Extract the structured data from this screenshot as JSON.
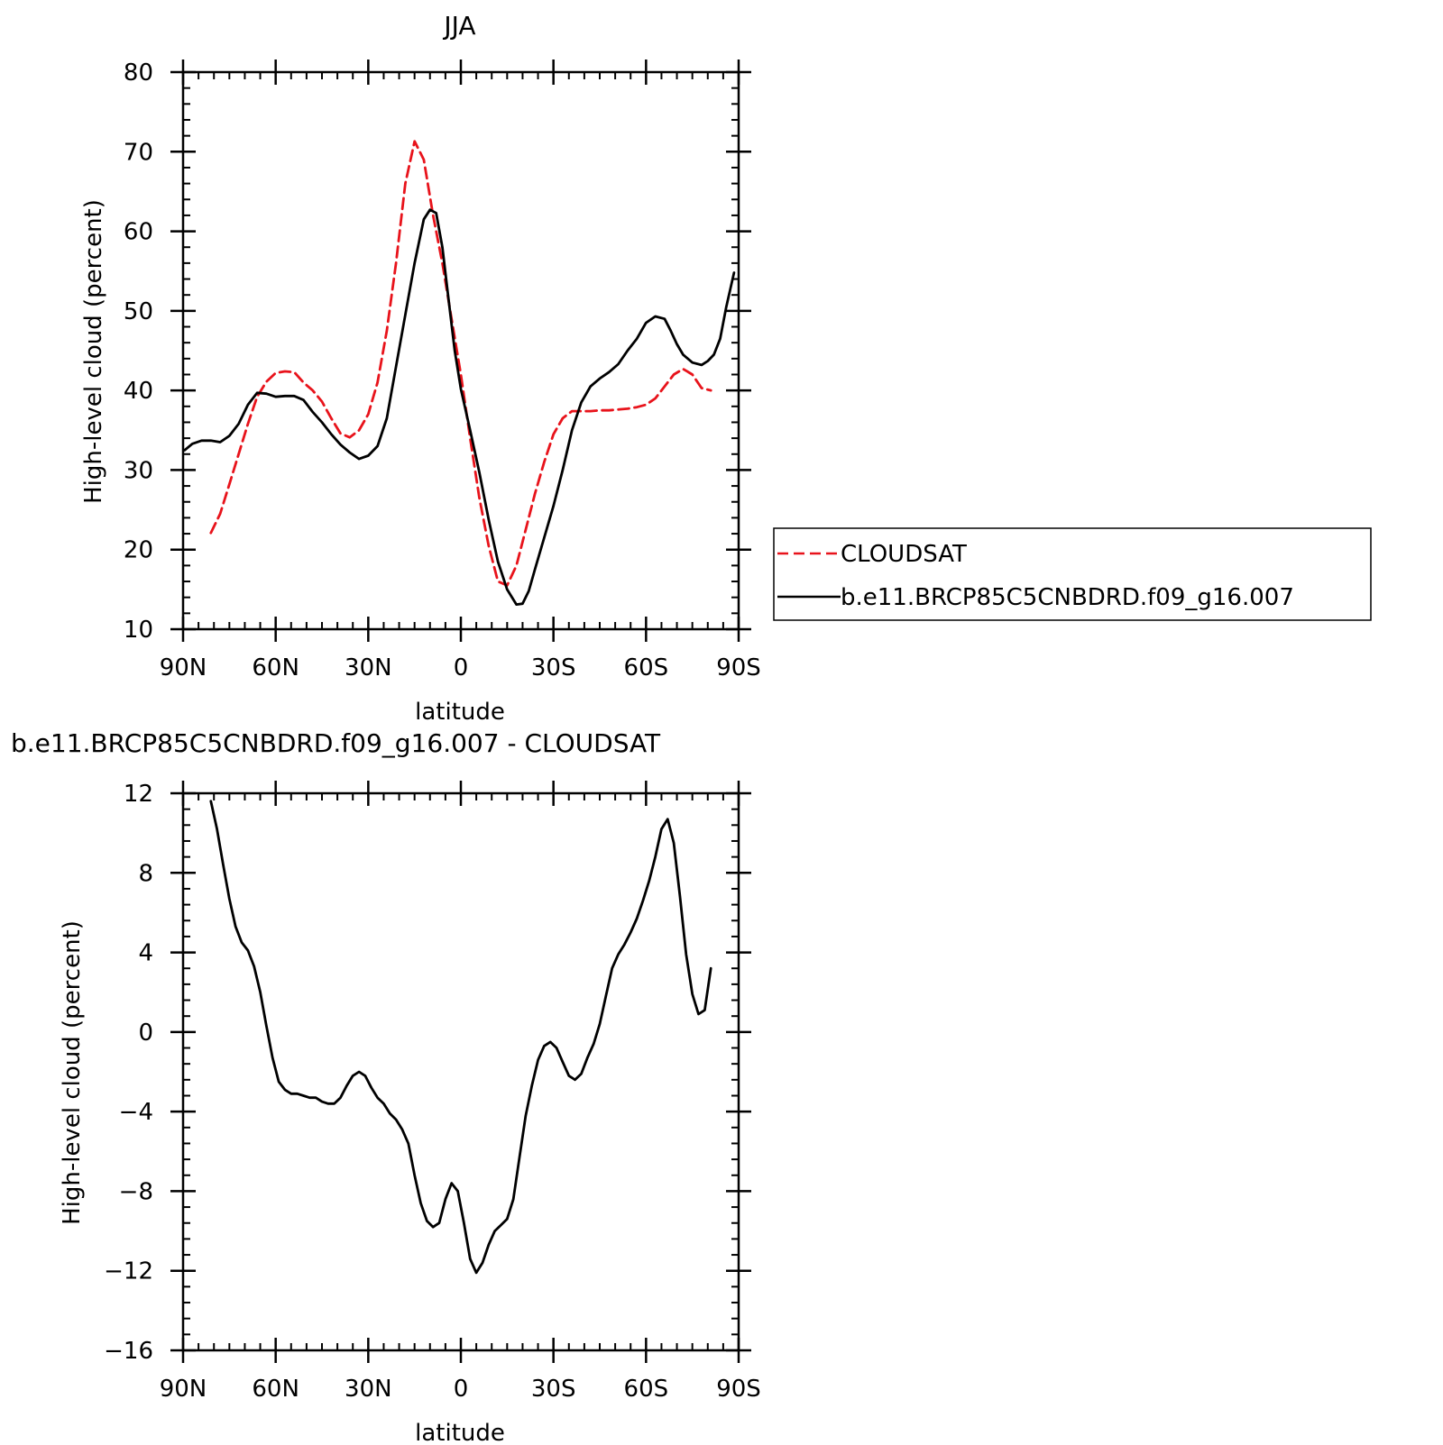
{
  "chart_data": [
    {
      "type": "line",
      "title": "JJA",
      "xlabel": "latitude",
      "ylabel": "High-level cloud (percent)",
      "xlim": [
        90,
        -90
      ],
      "ylim": [
        10,
        80
      ],
      "xticks": [
        90,
        60,
        30,
        0,
        -30,
        -60,
        -90
      ],
      "xtick_labels": [
        "90N",
        "60N",
        "30N",
        "0",
        "30S",
        "60S",
        "90S"
      ],
      "yticks": [
        10,
        20,
        30,
        40,
        50,
        60,
        70,
        80
      ],
      "ytick_labels": [
        "10",
        "20",
        "30",
        "40",
        "50",
        "60",
        "70",
        "80"
      ],
      "grid": false,
      "legend_position": "right",
      "series": [
        {
          "name": "CLOUDSAT",
          "color": "#e8131b",
          "dash": "dashed",
          "x": [
            81,
            78,
            75,
            72,
            69,
            66,
            63,
            60,
            57,
            54,
            51,
            48,
            45,
            42,
            39,
            36,
            33,
            30,
            27,
            24,
            21,
            18,
            15,
            12,
            9,
            6,
            3,
            0,
            -3,
            -6,
            -9,
            -12,
            -15,
            -18,
            -21,
            -24,
            -27,
            -30,
            -33,
            -36,
            -39,
            -42,
            -45,
            -48,
            -51,
            -54,
            -57,
            -60,
            -63,
            -66,
            -69,
            -72,
            -75,
            -78,
            -81
          ],
          "y": [
            22.1,
            24.5,
            28.2,
            32,
            35.8,
            39.2,
            41.1,
            42.2,
            42.4,
            42.3,
            41,
            40,
            38.6,
            36.5,
            34.6,
            34.1,
            35,
            37,
            41,
            47.5,
            56,
            66,
            71.3,
            69,
            62,
            56,
            49,
            42,
            34,
            26.5,
            20.5,
            16,
            15.5,
            18,
            22.5,
            27,
            31,
            34.5,
            36.5,
            37.4,
            37.4,
            37.4,
            37.5,
            37.5,
            37.6,
            37.7,
            37.9,
            38.2,
            39,
            40.5,
            42,
            42.7,
            42,
            40.3,
            40
          ]
        },
        {
          "name": "b.e11.BRCP85C5CNBDRD.f09_g16.007",
          "color": "#000000",
          "dash": "solid",
          "x": [
            89.5,
            87,
            84,
            81,
            78,
            75,
            72,
            69,
            66,
            63,
            60,
            57,
            54,
            51,
            48,
            45,
            42,
            39,
            36,
            33,
            30,
            27,
            24,
            21,
            18,
            15,
            12,
            10,
            8,
            6,
            4,
            2,
            0,
            -3,
            -6,
            -9,
            -12,
            -15,
            -18,
            -20,
            -22,
            -24,
            -27,
            -30,
            -33,
            -36,
            -39,
            -42,
            -45,
            -48,
            -51,
            -54,
            -57,
            -60,
            -63,
            -66,
            -68,
            -70,
            -72,
            -75,
            -78,
            -80,
            -82,
            -84,
            -86,
            -88.5
          ],
          "y": [
            32.5,
            33.3,
            33.7,
            33.7,
            33.5,
            34.3,
            35.8,
            38.2,
            39.7,
            39.6,
            39.2,
            39.3,
            39.3,
            38.8,
            37.3,
            36,
            34.5,
            33.2,
            32.2,
            31.4,
            31.8,
            33,
            36.5,
            43,
            49.5,
            56,
            61.5,
            62.7,
            62.3,
            58,
            51.5,
            45,
            40.2,
            35,
            29.7,
            23.8,
            18.5,
            15,
            13.1,
            13.2,
            14.8,
            17.5,
            21.5,
            25.5,
            30,
            35,
            38.5,
            40.5,
            41.5,
            42.3,
            43.3,
            45,
            46.5,
            48.5,
            49.3,
            49,
            47.5,
            45.8,
            44.5,
            43.5,
            43.2,
            43.7,
            44.5,
            46.5,
            50.5,
            54.8
          ]
        }
      ]
    },
    {
      "type": "line",
      "title": "b.e11.BRCP85C5CNBDRD.f09_g16.007 - CLOUDSAT",
      "xlabel": "latitude",
      "ylabel": "High-level cloud (percent)",
      "xlim": [
        90,
        -90
      ],
      "ylim": [
        -16,
        12
      ],
      "xticks": [
        90,
        60,
        30,
        0,
        -30,
        -60,
        -90
      ],
      "xtick_labels": [
        "90N",
        "60N",
        "30N",
        "0",
        "30S",
        "60S",
        "90S"
      ],
      "yticks": [
        -16,
        -12,
        -8,
        -4,
        0,
        4,
        8,
        12
      ],
      "ytick_labels": [
        "−16",
        "−12",
        "−8",
        "−4",
        "0",
        "4",
        "8",
        "12"
      ],
      "grid": false,
      "series": [
        {
          "color": "#000000",
          "dash": "solid",
          "x": [
            81,
            79,
            77,
            75,
            73,
            71,
            69,
            67,
            65,
            63,
            61,
            59,
            57,
            55,
            53,
            51,
            49,
            47,
            45,
            43,
            41,
            39,
            37,
            35,
            33,
            31,
            29,
            27,
            25,
            23,
            21,
            19,
            17,
            15,
            13,
            11,
            9,
            7,
            5,
            3,
            1,
            -1,
            -3,
            -5,
            -7,
            -9,
            -11,
            -13,
            -15,
            -17,
            -19,
            -21,
            -23,
            -25,
            -27,
            -29,
            -31,
            -33,
            -35,
            -37,
            -39,
            -41,
            -43,
            -45,
            -47,
            -49,
            -51,
            -53,
            -55,
            -57,
            -59,
            -61,
            -63,
            -65,
            -67,
            -69,
            -71,
            -73,
            -75,
            -77,
            -79,
            -81
          ],
          "y": [
            11.6,
            10.2,
            8.4,
            6.7,
            5.3,
            4.5,
            4.1,
            3.3,
            2,
            0.3,
            -1.3,
            -2.5,
            -2.9,
            -3.1,
            -3.1,
            -3.2,
            -3.3,
            -3.3,
            -3.5,
            -3.6,
            -3.6,
            -3.3,
            -2.7,
            -2.2,
            -2,
            -2.2,
            -2.8,
            -3.3,
            -3.6,
            -4.1,
            -4.4,
            -4.9,
            -5.6,
            -7.2,
            -8.6,
            -9.5,
            -9.8,
            -9.6,
            -8.4,
            -7.6,
            -8,
            -9.6,
            -11.4,
            -12.1,
            -11.6,
            -10.7,
            -10,
            -9.7,
            -9.4,
            -8.4,
            -6.3,
            -4.2,
            -2.7,
            -1.4,
            -0.7,
            -0.5,
            -0.8,
            -1.5,
            -2.2,
            -2.4,
            -2.1,
            -1.3,
            -0.6,
            0.4,
            1.8,
            3.2,
            3.9,
            4.4,
            5,
            5.7,
            6.6,
            7.6,
            8.8,
            10.2,
            10.7,
            9.5,
            6.8,
            3.9,
            1.9,
            0.9,
            1.1,
            3.2
          ]
        }
      ]
    }
  ]
}
